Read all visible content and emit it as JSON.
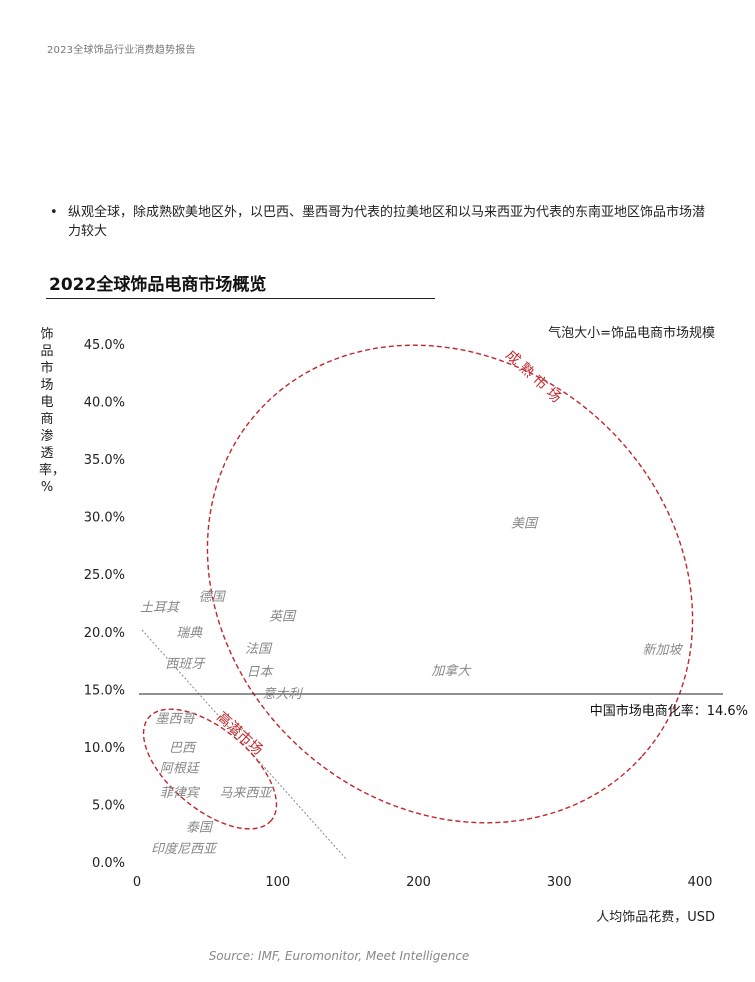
{
  "header": {
    "report_title": "2023全球饰品行业消费趋势报告"
  },
  "bullets": [
    "纵观全球，除成熟欧美地区外，以巴西、墨西哥为代表的拉美地区和以马来西亚为代表的东南亚地区饰品市场潜力较大"
  ],
  "chart_title": "2022全球饰品电商市场概览",
  "bubble_note": "气泡大小=饰品电商市场规模",
  "source": "Source: IMF, Euromonitor, Meet Intelligence",
  "chart_data": {
    "type": "scatter",
    "title": "2022全球饰品电商市场概览",
    "xlabel": "人均饰品花费，USD",
    "ylabel": "饰品市场电商渗透率，%",
    "xlim": [
      0,
      400
    ],
    "ylim": [
      0,
      45
    ],
    "x_ticks": [
      0,
      100,
      200,
      300,
      400
    ],
    "y_ticks": [
      0,
      5,
      10,
      15,
      20,
      25,
      30,
      35,
      40,
      45
    ],
    "x_tick_labels": [
      "0",
      "100",
      "200",
      "300",
      "400"
    ],
    "y_tick_labels": [
      "0.0%",
      "5.0%",
      "10.0%",
      "15.0%",
      "20.0%",
      "25.0%",
      "30.0%",
      "35.0%",
      "40.0%",
      "45.0%"
    ],
    "points": [
      {
        "label": "美国",
        "x": 275,
        "y": 29.5
      },
      {
        "label": "新加坡",
        "x": 373,
        "y": 18.5
      },
      {
        "label": "加拿大",
        "x": 223,
        "y": 16.7
      },
      {
        "label": "土耳其",
        "x": 16,
        "y": 22.2
      },
      {
        "label": "德国",
        "x": 53,
        "y": 23.1
      },
      {
        "label": "英国",
        "x": 103,
        "y": 21.4
      },
      {
        "label": "瑞典",
        "x": 37,
        "y": 20
      },
      {
        "label": "法国",
        "x": 86,
        "y": 18.6
      },
      {
        "label": "西班牙",
        "x": 34,
        "y": 17.3
      },
      {
        "label": "日本",
        "x": 87,
        "y": 16.6
      },
      {
        "label": "意大利",
        "x": 103,
        "y": 14.7
      },
      {
        "label": "墨西哥",
        "x": 27,
        "y": 12.5
      },
      {
        "label": "巴西",
        "x": 32,
        "y": 10
      },
      {
        "label": "阿根廷",
        "x": 30,
        "y": 8.2
      },
      {
        "label": "菲律宾",
        "x": 30,
        "y": 6.1
      },
      {
        "label": "马来西亚",
        "x": 77,
        "y": 6.1
      },
      {
        "label": "泰国",
        "x": 44,
        "y": 3.1
      },
      {
        "label": "印度尼西亚",
        "x": 33,
        "y": 1.2
      }
    ],
    "reference_line": {
      "label": "中国市场电商化率：14.6%",
      "y": 14.6
    },
    "groups": [
      {
        "label": "成熟市场",
        "color": "#c0282d"
      },
      {
        "label": "高潜市场",
        "color": "#c0282d"
      }
    ],
    "grid": false
  }
}
